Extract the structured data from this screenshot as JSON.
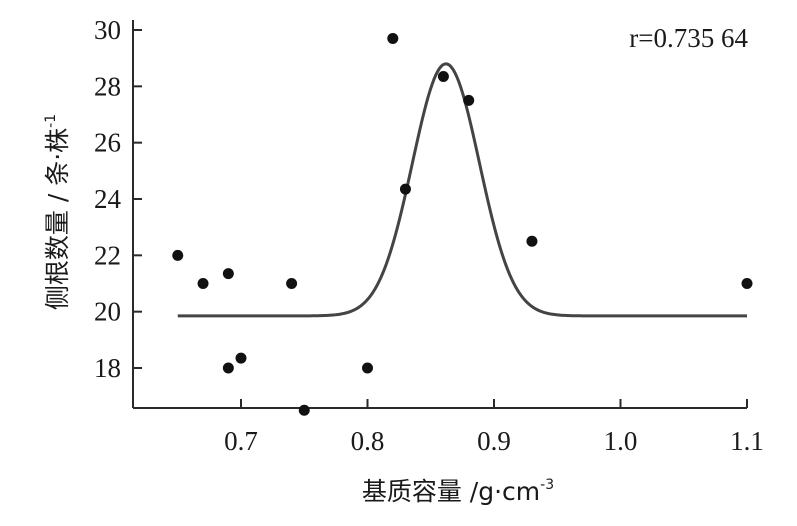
{
  "chart_data": {
    "type": "scatter",
    "title": "",
    "xlabel_main": "基质容量 /g·cm",
    "xlabel_sup": "-3",
    "ylabel_main": "侧根数量 / 条·株",
    "ylabel_sup": "-1",
    "annotation": "r=0.735 64",
    "xlim": [
      0.63,
      1.1
    ],
    "ylim": [
      16.5,
      30
    ],
    "x_ticks": [
      0.7,
      0.8,
      0.9,
      1.0,
      1.1
    ],
    "x_tick_labels": [
      "0.7",
      "0.8",
      "0.9",
      "1.0",
      "1.1"
    ],
    "y_ticks": [
      18,
      20,
      22,
      24,
      26,
      28,
      30
    ],
    "y_tick_labels": [
      "18",
      "20",
      "22",
      "24",
      "26",
      "28",
      "30"
    ],
    "grid": false,
    "series": [
      {
        "points": [
          [
            0.65,
            22.0
          ],
          [
            0.67,
            21.0
          ],
          [
            0.69,
            21.35
          ],
          [
            0.69,
            18.0
          ],
          [
            0.7,
            18.35
          ],
          [
            0.74,
            21.0
          ],
          [
            0.75,
            16.5
          ],
          [
            0.8,
            18.0
          ],
          [
            0.82,
            29.7
          ],
          [
            0.83,
            24.35
          ],
          [
            0.86,
            28.35
          ],
          [
            0.88,
            27.5
          ],
          [
            0.93,
            22.5
          ],
          [
            1.1,
            21.0
          ]
        ]
      }
    ],
    "fit_curve": {
      "type": "gaussian",
      "baseline": 19.85,
      "peak": 28.8,
      "center": 0.862,
      "sigma": 0.0265,
      "x_range": [
        0.65,
        1.1
      ]
    }
  }
}
